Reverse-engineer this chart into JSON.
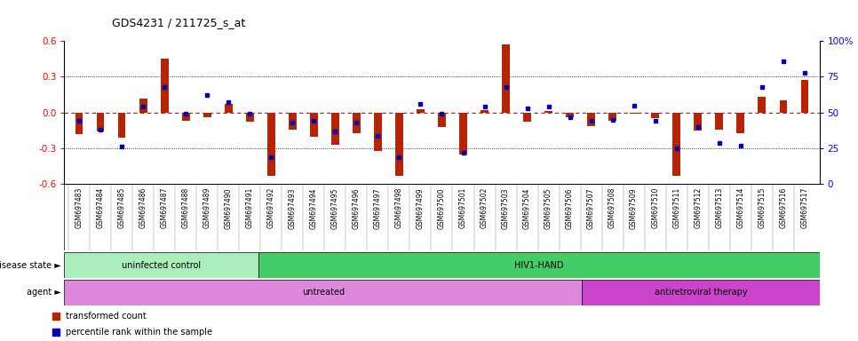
{
  "title": "GDS4231 / 211725_s_at",
  "samples": [
    "GSM697483",
    "GSM697484",
    "GSM697485",
    "GSM697486",
    "GSM697487",
    "GSM697488",
    "GSM697489",
    "GSM697490",
    "GSM697491",
    "GSM697492",
    "GSM697493",
    "GSM697494",
    "GSM697495",
    "GSM697496",
    "GSM697497",
    "GSM697498",
    "GSM697499",
    "GSM697500",
    "GSM697501",
    "GSM697502",
    "GSM697503",
    "GSM697504",
    "GSM697505",
    "GSM697506",
    "GSM697507",
    "GSM697508",
    "GSM697509",
    "GSM697510",
    "GSM697511",
    "GSM697512",
    "GSM697513",
    "GSM697514",
    "GSM697515",
    "GSM697516",
    "GSM697517"
  ],
  "transformed_count": [
    -0.18,
    -0.16,
    -0.21,
    0.12,
    0.45,
    -0.07,
    -0.04,
    0.07,
    -0.08,
    -0.53,
    -0.14,
    -0.2,
    -0.27,
    -0.17,
    -0.32,
    -0.53,
    0.03,
    -0.12,
    -0.35,
    0.02,
    0.57,
    -0.08,
    0.01,
    -0.04,
    -0.11,
    -0.07,
    -0.01,
    -0.05,
    -0.53,
    -0.15,
    -0.14,
    -0.17,
    0.13,
    0.1,
    0.27
  ],
  "percentile_rank": [
    44,
    38,
    26,
    54,
    68,
    49,
    62,
    57,
    49,
    19,
    43,
    44,
    37,
    43,
    34,
    19,
    56,
    49,
    22,
    54,
    68,
    53,
    54,
    47,
    44,
    45,
    55,
    44,
    25,
    40,
    29,
    27,
    68,
    86,
    78
  ],
  "disease_state_groups": [
    {
      "label": "uninfected control",
      "start": 0,
      "end": 9,
      "color": "#aaeebb"
    },
    {
      "label": "HIV1-HAND",
      "start": 9,
      "end": 35,
      "color": "#44cc66"
    }
  ],
  "agent_groups": [
    {
      "label": "untreated",
      "start": 0,
      "end": 24,
      "color": "#dd88dd"
    },
    {
      "label": "antiretroviral therapy",
      "start": 24,
      "end": 35,
      "color": "#cc44cc"
    }
  ],
  "bar_color": "#bb2200",
  "dot_color": "#0000bb",
  "ylim": [
    -0.6,
    0.6
  ],
  "yticks_left": [
    -0.6,
    -0.3,
    0.0,
    0.3,
    0.6
  ],
  "yticks_right": [
    0,
    25,
    50,
    75,
    100
  ],
  "legend_bar_label": "transformed count",
  "legend_dot_label": "percentile rank within the sample",
  "disease_state_label": "disease state",
  "agent_label": "agent"
}
